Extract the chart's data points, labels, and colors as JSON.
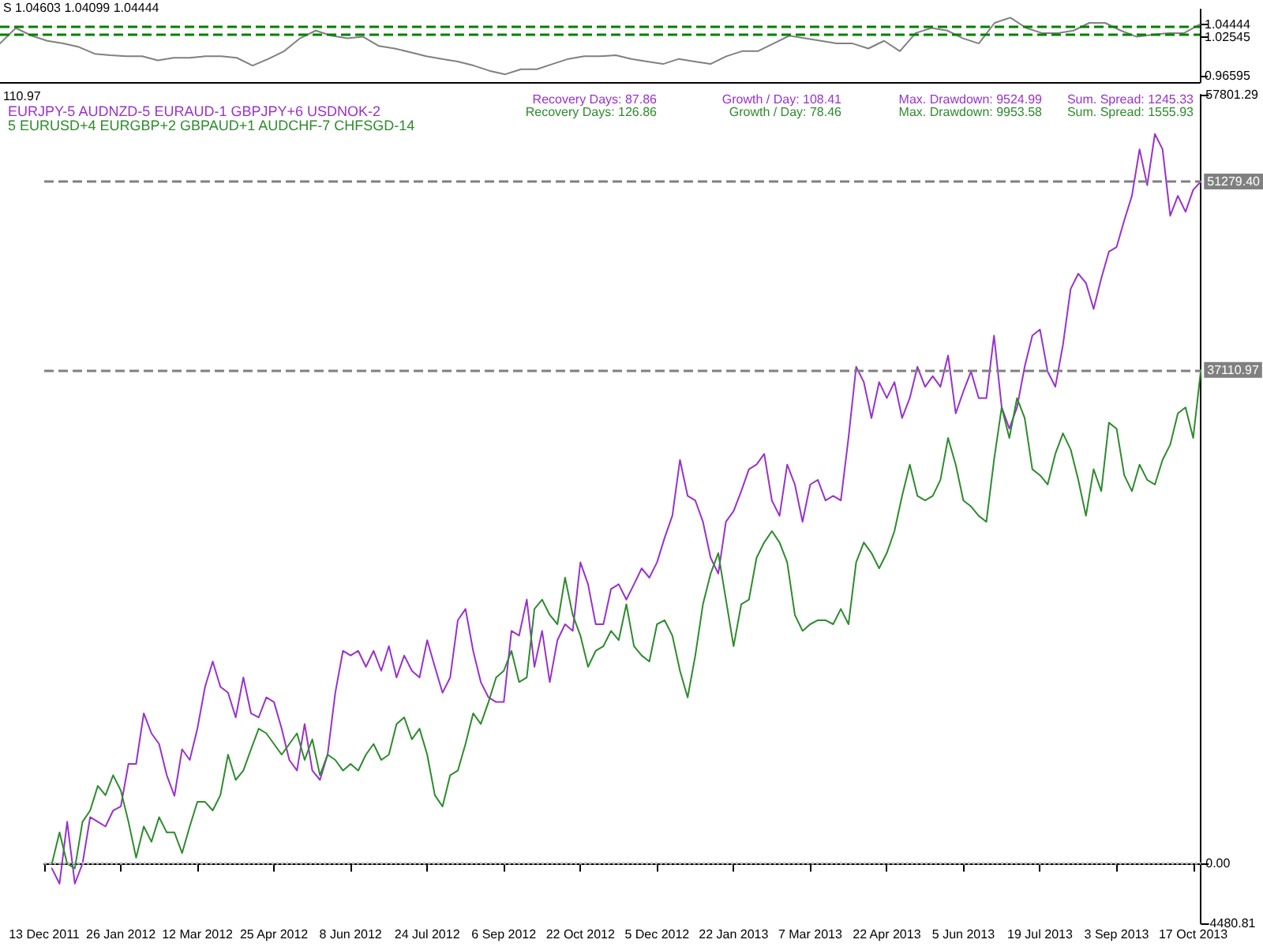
{
  "chart_data": [
    {
      "type": "line",
      "categories": [
        null,
        null,
        null,
        null,
        null,
        null,
        null,
        null,
        null,
        null,
        null,
        null,
        null,
        null,
        null,
        null,
        null,
        null,
        null,
        null,
        null,
        null,
        null,
        null,
        null,
        null,
        null,
        null,
        null,
        null,
        null,
        null,
        null,
        null,
        null,
        null,
        null,
        null,
        null,
        null,
        null,
        null,
        null,
        null,
        null,
        null,
        null,
        null,
        null,
        null,
        null,
        null,
        null,
        null,
        null,
        null,
        null,
        null,
        null,
        null,
        null,
        null,
        null,
        null,
        null,
        null,
        null,
        null,
        null,
        null,
        null,
        null,
        null,
        null,
        null,
        null,
        null
      ],
      "series": [
        {
          "color": "#808080",
          "values": [
            1.0153,
            1.0388,
            1.0271,
            1.0193,
            1.0153,
            1.0099,
            0.9996,
            0.9973,
            0.9958,
            0.9958,
            0.9895,
            0.9935,
            0.9935,
            0.9958,
            0.9958,
            0.9935,
            0.9817,
            0.9918,
            1.0036,
            1.0231,
            1.0349,
            1.0271,
            1.0231,
            1.0255,
            1.0114,
            1.0076,
            1.002,
            0.9958,
            0.9918,
            0.9879,
            0.9817,
            0.9738,
            0.9684,
            0.9761,
            0.9761,
            0.9841,
            0.9918,
            0.9958,
            0.9958,
            0.9973,
            0.9918,
            0.9879,
            0.9841,
            0.9918,
            0.9879,
            0.9841,
            0.9958,
            1.0036,
            1.0036,
            1.0153,
            1.0271,
            1.0231,
            1.0193,
            1.0153,
            1.0153,
            1.0076,
            1.0193,
            1.0036,
            1.0311,
            1.0388,
            1.0349,
            1.0231,
            1.0153,
            1.0466,
            1.0546,
            1.0388,
            1.0311,
            1.0311,
            1.0349,
            1.0466,
            1.0466,
            1.0349,
            1.0255,
            1.0287,
            1.0311,
            1.0311,
            1.0444
          ]
        }
      ],
      "ylim": [
        0.9566,
        1.067
      ],
      "yticks": [
        0.96595,
        1.02545,
        1.04444
      ],
      "ref_lines": [
        {
          "axis": "y",
          "value": 1.04444,
          "color": "#008000",
          "line_style": "dashed"
        },
        {
          "axis": "y",
          "value": 1.02545,
          "color": "#008000",
          "line_style": "dashed"
        }
      ],
      "annotations": [
        "S 1.04603 1.04099 1.04444"
      ],
      "tick_labels": "y",
      "marker": "none",
      "legend": false,
      "grid": false
    },
    {
      "type": "line",
      "categories": [
        "13 Dec 2011",
        null,
        null,
        null,
        null,
        null,
        null,
        null,
        null,
        null,
        "26 Jan 2012",
        null,
        null,
        null,
        null,
        null,
        null,
        null,
        null,
        null,
        "12 Mar 2012",
        null,
        null,
        null,
        null,
        null,
        null,
        null,
        null,
        null,
        "25 Apr 2012",
        null,
        null,
        null,
        null,
        null,
        null,
        null,
        null,
        null,
        "8 Jun 2012",
        null,
        null,
        null,
        null,
        null,
        null,
        null,
        null,
        null,
        "24 Jul 2012",
        null,
        null,
        null,
        null,
        null,
        null,
        null,
        null,
        null,
        "6 Sep 2012",
        null,
        null,
        null,
        null,
        null,
        null,
        null,
        null,
        null,
        "22 Oct 2012",
        null,
        null,
        null,
        null,
        null,
        null,
        null,
        null,
        null,
        "5 Dec 2012",
        null,
        null,
        null,
        null,
        null,
        null,
        null,
        null,
        null,
        "22 Jan 2013",
        null,
        null,
        null,
        null,
        null,
        null,
        null,
        null,
        null,
        "7 Mar 2013",
        null,
        null,
        null,
        null,
        null,
        null,
        null,
        null,
        null,
        "22 Apr 2013",
        null,
        null,
        null,
        null,
        null,
        null,
        null,
        null,
        null,
        "5 Jun 2013",
        null,
        null,
        null,
        null,
        null,
        null,
        null,
        null,
        null,
        "19 Jul 2013",
        null,
        null,
        null,
        null,
        null,
        null,
        null,
        null,
        null,
        "3 Sep 2013",
        null,
        null,
        null,
        null,
        null,
        null,
        null,
        null,
        null,
        "17 Oct 2013",
        null
      ],
      "series": [
        {
          "name": "EURJPY-5 AUDNZD-5 EURAUD-1 GBPJPY+6 USDNOK-2",
          "color": "#9932cc",
          "values": [
            null,
            -350,
            -1500,
            3150,
            -1500,
            0,
            3500,
            3150,
            2800,
            4000,
            4300,
            7500,
            7500,
            11300,
            9800,
            9000,
            6650,
            5100,
            8600,
            7800,
            10150,
            13300,
            15200,
            13300,
            12850,
            11000,
            14000,
            11300,
            11000,
            12500,
            12150,
            10150,
            7800,
            7000,
            10500,
            7000,
            6300,
            8200,
            12850,
            16000,
            15650,
            16000,
            14800,
            16000,
            14500,
            16350,
            14000,
            15650,
            14500,
            14000,
            16800,
            14800,
            12850,
            14000,
            18300,
            19150,
            16000,
            13650,
            12500,
            12150,
            12150,
            17500,
            17150,
            19850,
            14800,
            17500,
            13650,
            16800,
            18000,
            17500,
            22650,
            21000,
            18000,
            18000,
            20650,
            21000,
            19850,
            21000,
            22200,
            21500,
            22650,
            24500,
            26150,
            30350,
            27650,
            27300,
            25700,
            23000,
            21800,
            25700,
            26500,
            28000,
            29650,
            30000,
            30800,
            27300,
            26150,
            30000,
            28500,
            25700,
            28500,
            28850,
            27300,
            27650,
            27300,
            32000,
            37350,
            36200,
            33500,
            36200,
            35000,
            36200,
            33500,
            35000,
            37350,
            35850,
            36650,
            35850,
            38200,
            33850,
            35500,
            37000,
            35000,
            35000,
            39700,
            34300,
            32700,
            34300,
            37350,
            39700,
            40150,
            37000,
            35850,
            39000,
            43200,
            44350,
            43650,
            41700,
            44000,
            46000,
            46350,
            48350,
            50200,
            53700,
            51000,
            54850,
            53700,
            48700,
            50200,
            49000,
            50650,
            51279.4
          ]
        },
        {
          "name": "5 EURUSD+4 EURGBP+2 GBPAUD+1 AUDCHF-7 CHFSGD-14",
          "color": "#2e8b2e",
          "values": [
            null,
            0,
            2350,
            0,
            -350,
            3150,
            4000,
            5850,
            5150,
            6650,
            5500,
            3150,
            450,
            2800,
            1650,
            3500,
            2350,
            2350,
            800,
            2800,
            4650,
            4650,
            4000,
            5150,
            8200,
            6300,
            7000,
            8600,
            10150,
            9800,
            9000,
            8200,
            9000,
            9800,
            7800,
            9350,
            6650,
            8200,
            7800,
            7000,
            7500,
            7000,
            8200,
            9000,
            7800,
            8200,
            10500,
            11000,
            9350,
            10150,
            8200,
            5150,
            4300,
            6650,
            7000,
            9000,
            11300,
            10500,
            12150,
            14000,
            14500,
            16000,
            13650,
            14000,
            19150,
            19850,
            18700,
            18000,
            21500,
            18700,
            17150,
            14800,
            16000,
            16350,
            17500,
            16800,
            19500,
            16350,
            15650,
            15200,
            18000,
            18300,
            17150,
            14500,
            12500,
            15650,
            19500,
            21800,
            23350,
            19850,
            16350,
            19500,
            19850,
            23000,
            24150,
            25000,
            24150,
            22650,
            18700,
            17500,
            18000,
            18300,
            18300,
            18000,
            19150,
            18000,
            22650,
            24150,
            23350,
            22200,
            23350,
            25000,
            27650,
            30000,
            27650,
            27300,
            27650,
            28850,
            32000,
            30000,
            27300,
            26850,
            26150,
            25700,
            30350,
            34300,
            32000,
            35000,
            33500,
            29650,
            29200,
            28500,
            30800,
            32350,
            31150,
            28850,
            26150,
            29650,
            28000,
            33150,
            32700,
            29200,
            28000,
            30000,
            28850,
            28500,
            30350,
            31500,
            33850,
            34300,
            32000,
            37110.97
          ]
        }
      ],
      "ylim": [
        -4480.81,
        57801.29
      ],
      "yticks": [
        {
          "value": -4480.81,
          "label": "-4480.81"
        },
        {
          "value": 0,
          "label": "0.00"
        },
        {
          "value": 57801.29,
          "label": "57801.29"
        }
      ],
      "ref_lines": [
        {
          "axis": "y",
          "value": 51279.4,
          "label": "51279.40",
          "color": "#808080",
          "line_style": "dashed"
        },
        {
          "axis": "y",
          "value": 37110.97,
          "label": "37110.97",
          "color": "#808080",
          "line_style": "dashed"
        },
        {
          "axis": "y",
          "value": 0,
          "color": "#c0c0c0",
          "line_style": "dotted"
        }
      ],
      "annotations": [
        "110.97",
        "Recovery Days: 87.86",
        "Growth / Day: 108.41",
        "Max. Drawdown: 9524.99",
        "Sum. Spread: 1245.33",
        "Recovery Days: 126.86",
        "Growth / Day: 78.46",
        "Max. Drawdown: 9953.58",
        "Sum. Spread: 1555.93"
      ],
      "legend": "top left",
      "marker": "none",
      "grid": false
    }
  ]
}
